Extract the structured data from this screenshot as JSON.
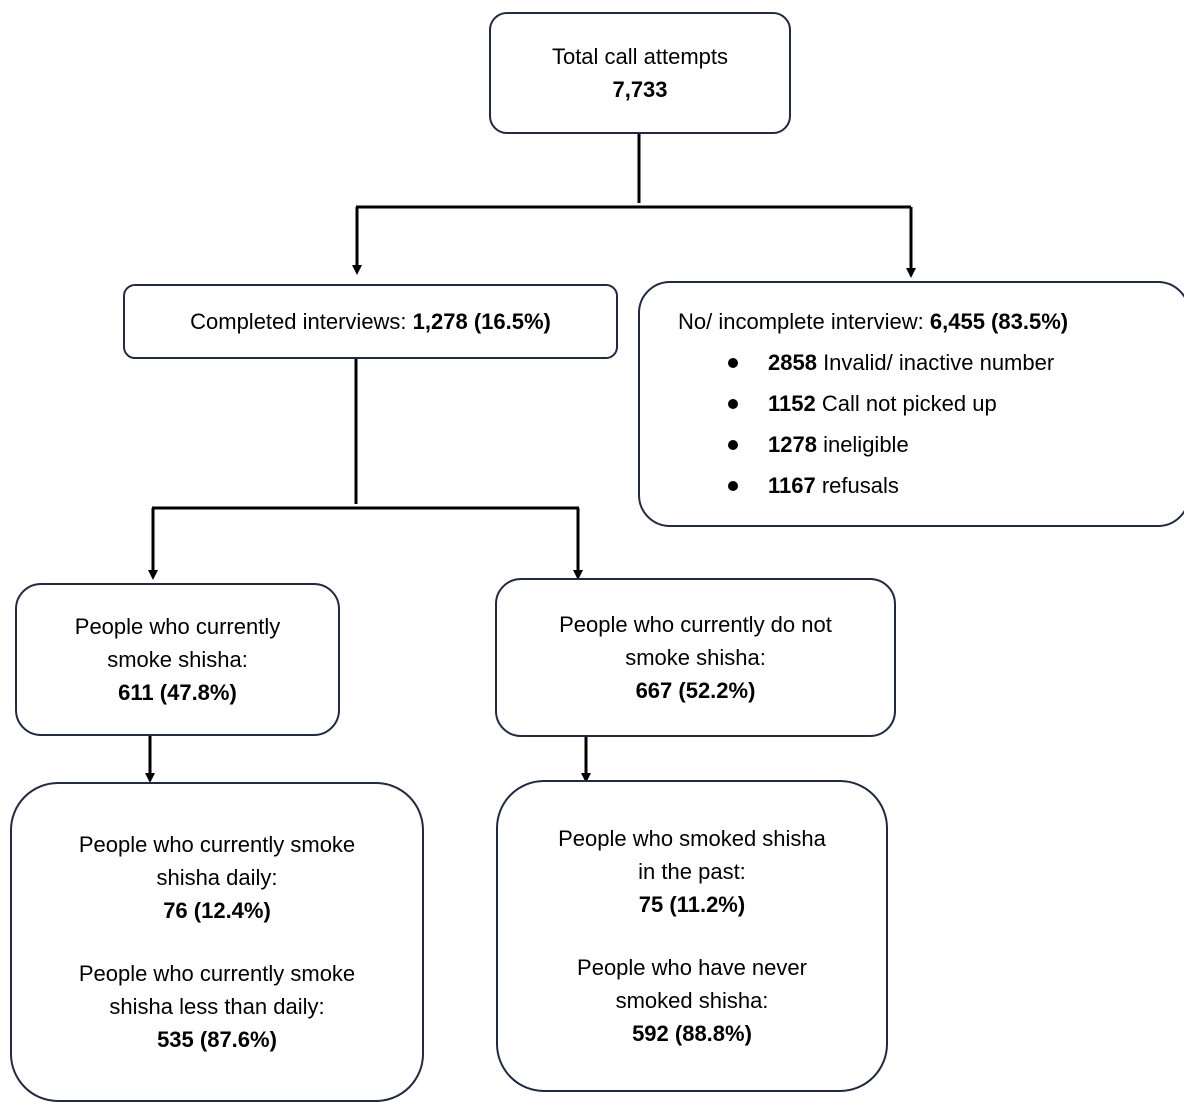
{
  "total": {
    "label": "Total call attempts",
    "value": "7,733"
  },
  "completed": {
    "label": "Completed interviews: ",
    "value": "1,278 (16.5%)"
  },
  "incomplete": {
    "label": "No/ incomplete interview: ",
    "value": "6,455 (83.5%)",
    "items": [
      {
        "count": "2858",
        "text": " Invalid/ inactive number"
      },
      {
        "count": "1152",
        "text": " Call not picked up"
      },
      {
        "count": "1278",
        "text": " ineligible"
      },
      {
        "count": "1167",
        "text": " refusals"
      }
    ]
  },
  "smokers": {
    "line1": "People who currently",
    "line2": "smoke shisha:",
    "value": "611 (47.8%)"
  },
  "nonsmokers": {
    "line1": "People who currently do not",
    "line2": "smoke shisha:",
    "value": "667 (52.2%)"
  },
  "smoker_detail": {
    "daily_line1": "People who currently smoke",
    "daily_line2": "shisha daily:",
    "daily_value": "76 (12.4%)",
    "less_line1": "People who currently smoke",
    "less_line2": "shisha less than daily:",
    "less_value": "535 (87.6%)"
  },
  "nonsmoker_detail": {
    "past_line1": "People who smoked shisha",
    "past_line2": "in the past:",
    "past_value": "75 (11.2%)",
    "never_line1": "People who have never",
    "never_line2": "smoked shisha:",
    "never_value": "592 (88.8%)"
  }
}
